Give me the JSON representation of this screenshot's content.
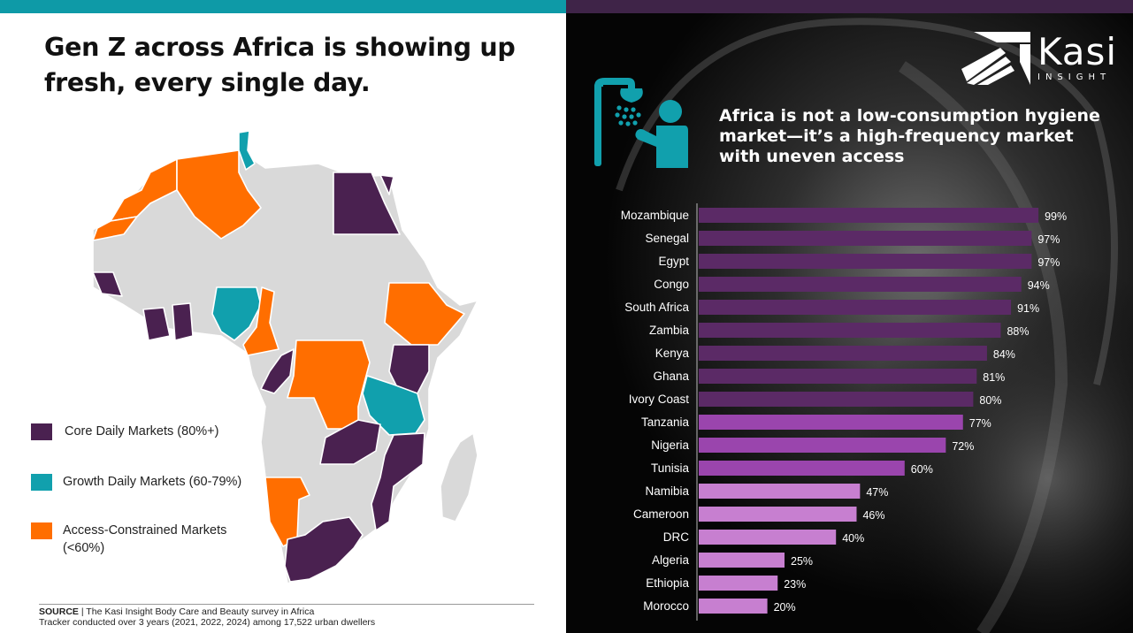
{
  "left_panel": {
    "headline": "Gen Z across Africa is showing up fresh, every single day.",
    "legend": [
      {
        "label": "Core Daily Markets (80%+)",
        "color": "#4a2150"
      },
      {
        "label": "Growth Daily Markets (60-79%)",
        "color": "#11a0ad"
      },
      {
        "label": "Access-Constrained Markets (<60%)",
        "color": "#ff6e00"
      }
    ],
    "map_colors": {
      "other": "#d9d9d9",
      "border": "#ffffff"
    },
    "source": {
      "label": "SOURCE",
      "text": " | The Kasi Insight Body Care and Beauty survey in Africa",
      "line2": "Tracker conducted over 3 years (2021, 2022, 2024) among 17,522 urban dwellers"
    }
  },
  "right_panel": {
    "logo": {
      "word": "Kasi",
      "sub": "INSIGHT"
    },
    "icon": "shower-person-icon",
    "icon_color": "#11a0ad",
    "title": "Africa is not a low-consumption hygiene market—it’s a high-frequency market with uneven access"
  },
  "chart_data": {
    "type": "bar",
    "orientation": "horizontal",
    "title": "Africa is not a low-consumption hygiene market—it’s a high-frequency market with uneven access",
    "categories": [
      "Mozambique",
      "Senegal",
      "Egypt",
      "Congo",
      "South Africa",
      "Zambia",
      "Kenya",
      "Ghana",
      "Ivory Coast",
      "Tanzania",
      "Nigeria",
      "Tunisia",
      "Namibia",
      "Cameroon",
      "DRC",
      "Algeria",
      "Ethiopia",
      "Morocco"
    ],
    "values": [
      99,
      97,
      97,
      94,
      91,
      88,
      84,
      81,
      80,
      77,
      72,
      60,
      47,
      46,
      40,
      25,
      23,
      20
    ],
    "value_labels": [
      "99%",
      "97%",
      "97%",
      "94%",
      "91%",
      "88%",
      "84%",
      "81%",
      "80%",
      "77%",
      "72%",
      "60%",
      "47%",
      "46%",
      "40%",
      "25%",
      "23%",
      "20%"
    ],
    "xlim": [
      0,
      100
    ],
    "colors": {
      "core": "#5b2a66",
      "growth": "#9a45ad",
      "access": "#c77fd0"
    },
    "grid": false
  }
}
